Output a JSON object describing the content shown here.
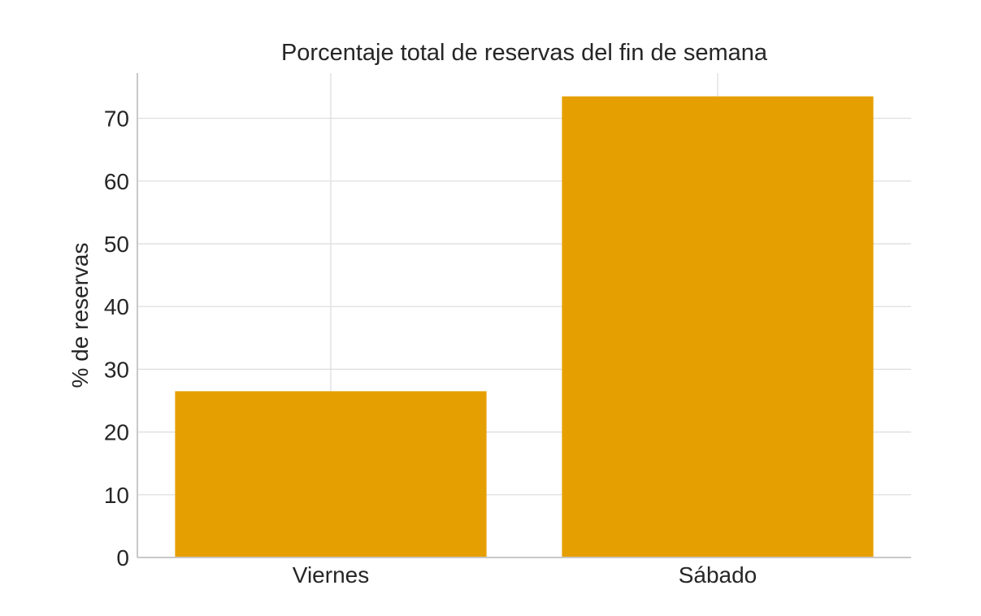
{
  "chart_data": {
    "type": "bar",
    "title": "Porcentaje total de reservas del fin de semana",
    "xlabel": "",
    "ylabel": "% de reservas",
    "categories": [
      "Viernes",
      "Sábado"
    ],
    "values": [
      26.5,
      73.5
    ],
    "ylim": [
      0,
      77.2
    ],
    "yticks": [
      0,
      10,
      20,
      30,
      40,
      50,
      60,
      70
    ],
    "grid": true,
    "bar_color": "#E69F00"
  }
}
